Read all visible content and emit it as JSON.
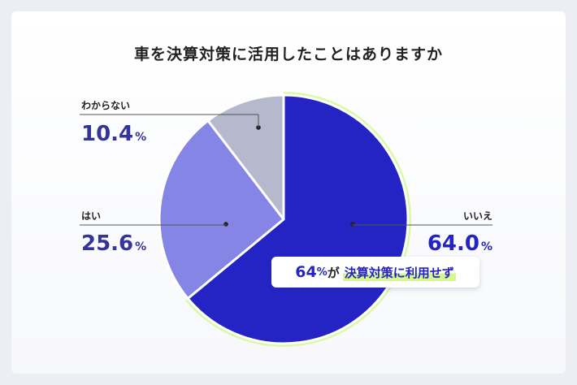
{
  "chart_data": {
    "type": "pie",
    "title": "車を決算対策に活用したことはありますか",
    "slices": [
      {
        "label": "いいえ",
        "value": 64.0,
        "display": "64.0",
        "unit": "%",
        "color": "#2424c4",
        "value_color": "#2424c4"
      },
      {
        "label": "はい",
        "value": 25.6,
        "display": "25.6",
        "unit": "%",
        "color": "#8585e6",
        "value_color": "#34349a"
      },
      {
        "label": "わからない",
        "value": 10.4,
        "display": "10.4",
        "unit": "%",
        "color": "#b6b8ce",
        "value_color": "#34349a"
      }
    ],
    "start_angle_deg": 0,
    "direction": "clockwise",
    "highlight_ring_color": "#d9f9a6"
  },
  "callout": {
    "pct": "64",
    "unit": "%",
    "ga": "が",
    "highlight": "決算対策に利用せず"
  }
}
